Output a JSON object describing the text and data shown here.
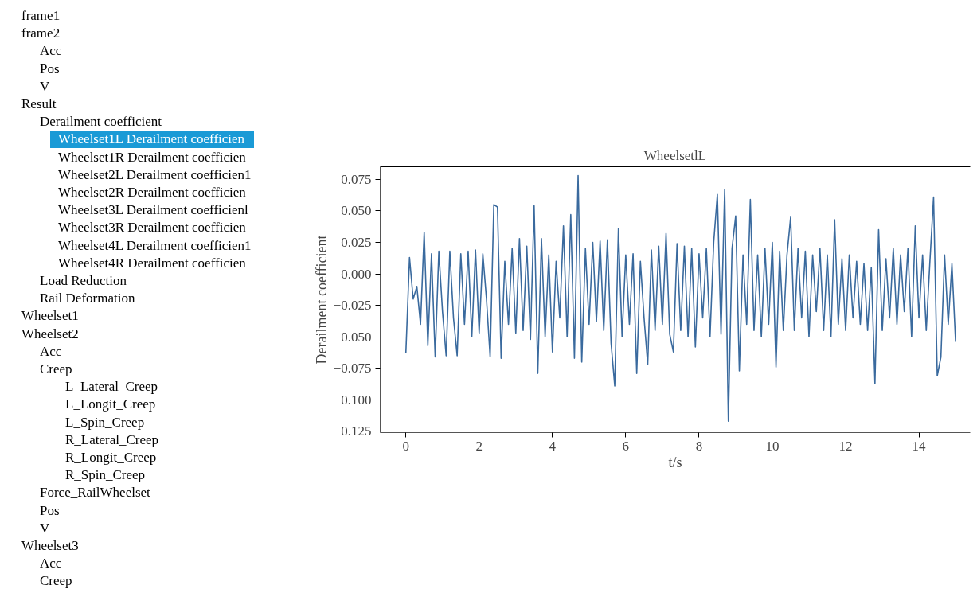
{
  "chart_data": {
    "type": "line",
    "title": "WheelsetlL",
    "xlabel": "t/s",
    "ylabel": "Derailment coefficient",
    "xlim": [
      -0.7,
      15.4
    ],
    "ylim": [
      -0.126,
      0.085
    ],
    "xticks": [
      0,
      2,
      4,
      6,
      8,
      10,
      12,
      14
    ],
    "yticks": [
      {
        "value": 0.075,
        "label": "0.075"
      },
      {
        "value": 0.05,
        "label": "0.050"
      },
      {
        "value": 0.025,
        "label": "0.025"
      },
      {
        "value": 0,
        "label": "0.000"
      },
      {
        "value": -0.025,
        "label": "−0.025"
      },
      {
        "value": -0.05,
        "label": "−0.050"
      },
      {
        "value": -0.075,
        "label": "−0.075"
      },
      {
        "value": -0.1,
        "label": "−0.100"
      },
      {
        "value": -0.125,
        "label": "−0.125"
      }
    ],
    "grid": false,
    "x": [
      0.0,
      0.1,
      0.2,
      0.3,
      0.4,
      0.5,
      0.6,
      0.7,
      0.8,
      0.9,
      1.0,
      1.1,
      1.2,
      1.3,
      1.4,
      1.5,
      1.6,
      1.7,
      1.8,
      1.9,
      2.0,
      2.1,
      2.2,
      2.3,
      2.4,
      2.5,
      2.6,
      2.7,
      2.8,
      2.9,
      3.0,
      3.1,
      3.2,
      3.3,
      3.4,
      3.5,
      3.6,
      3.7,
      3.8,
      3.9,
      4.0,
      4.1,
      4.2,
      4.3,
      4.4,
      4.5,
      4.6,
      4.7,
      4.8,
      4.9,
      5.0,
      5.1,
      5.2,
      5.3,
      5.4,
      5.5,
      5.6,
      5.7,
      5.8,
      5.9,
      6.0,
      6.1,
      6.2,
      6.3,
      6.4,
      6.5,
      6.6,
      6.7,
      6.8,
      6.9,
      7.0,
      7.1,
      7.2,
      7.3,
      7.4,
      7.5,
      7.6,
      7.7,
      7.8,
      7.9,
      8.0,
      8.1,
      8.2,
      8.3,
      8.4,
      8.5,
      8.6,
      8.7,
      8.8,
      8.9,
      9.0,
      9.1,
      9.2,
      9.3,
      9.4,
      9.5,
      9.6,
      9.7,
      9.8,
      9.9,
      10.0,
      10.1,
      10.2,
      10.3,
      10.4,
      10.5,
      10.6,
      10.7,
      10.8,
      10.9,
      11.0,
      11.1,
      11.2,
      11.3,
      11.4,
      11.5,
      11.6,
      11.7,
      11.8,
      11.9,
      12.0,
      12.1,
      12.2,
      12.3,
      12.4,
      12.5,
      12.6,
      12.7,
      12.8,
      12.9,
      13.0,
      13.1,
      13.2,
      13.3,
      13.4,
      13.5,
      13.6,
      13.7,
      13.8,
      13.9,
      14.0,
      14.1,
      14.2,
      14.3,
      14.4,
      14.5,
      14.6,
      14.7,
      14.8,
      14.9,
      15.0
    ],
    "series": [
      {
        "color": "#3a6a9e",
        "values": [
          -0.063,
          0.013,
          -0.02,
          -0.01,
          -0.04,
          0.033,
          -0.057,
          0.016,
          -0.066,
          0.018,
          -0.03,
          -0.065,
          0.018,
          -0.035,
          -0.065,
          0.016,
          -0.04,
          0.018,
          -0.05,
          0.019,
          -0.047,
          0.016,
          -0.02,
          -0.066,
          0.055,
          0.053,
          -0.067,
          0.01,
          -0.04,
          0.02,
          -0.047,
          0.028,
          -0.045,
          0.022,
          -0.052,
          0.054,
          -0.079,
          0.028,
          -0.05,
          0.015,
          -0.062,
          0.01,
          -0.035,
          0.038,
          -0.05,
          0.047,
          -0.067,
          0.078,
          -0.07,
          0.02,
          -0.04,
          0.025,
          -0.038,
          0.026,
          -0.045,
          0.027,
          -0.055,
          -0.089,
          0.036,
          -0.05,
          0.015,
          -0.04,
          0.016,
          -0.079,
          0.01,
          -0.035,
          -0.072,
          0.019,
          -0.045,
          0.022,
          -0.04,
          0.032,
          -0.048,
          -0.062,
          0.024,
          -0.045,
          0.022,
          -0.05,
          0.02,
          -0.058,
          0.016,
          -0.035,
          0.02,
          -0.05,
          0.025,
          0.063,
          -0.048,
          0.067,
          -0.117,
          0.02,
          0.046,
          -0.077,
          0.015,
          -0.04,
          0.059,
          -0.045,
          0.015,
          -0.05,
          0.02,
          -0.04,
          0.025,
          -0.074,
          0.018,
          -0.045,
          0.015,
          0.045,
          -0.045,
          0.02,
          -0.035,
          0.018,
          -0.05,
          0.015,
          -0.03,
          0.02,
          -0.045,
          0.015,
          -0.05,
          0.043,
          -0.04,
          0.012,
          -0.045,
          0.015,
          -0.035,
          0.01,
          -0.04,
          0.008,
          -0.045,
          0.005,
          -0.087,
          0.035,
          -0.045,
          0.012,
          -0.035,
          0.02,
          -0.04,
          0.015,
          -0.03,
          0.02,
          -0.05,
          0.038,
          -0.035,
          0.015,
          -0.045,
          0.01,
          0.061,
          -0.081,
          -0.066,
          0.015,
          -0.04,
          0.008,
          -0.054
        ]
      }
    ],
    "annotations": [
      "frame1",
      "frame2",
      "Acc",
      "Pos",
      "V",
      "Result",
      "Derailment coefficient",
      "Wheelset1L Derailment coefficien",
      "Wheelset1R Derailment coefficien",
      "Wheelset2L Derailment coefficien1",
      "Wheelset2R Derailment coefficien",
      "Wheelset3L Derailment coefficienl",
      "Wheelset3R Derailment coefficien",
      "Wheelset4L Derailment coefficien1",
      "Wheelset4R Derailment coefficien",
      "Load Reduction",
      "Rail Deformation",
      "Wheelset1",
      "Wheelset2",
      "Acc",
      "Creep",
      "L_Lateral_Creep",
      "L_Longit_Creep",
      "L_Spin_Creep",
      "R_Lateral_Creep",
      "R_Longit_Creep",
      "R_Spin_Creep",
      "Force_RailWheelset",
      "Pos",
      "V",
      "Wheelset3",
      "Acc",
      "Creep"
    ]
  }
}
